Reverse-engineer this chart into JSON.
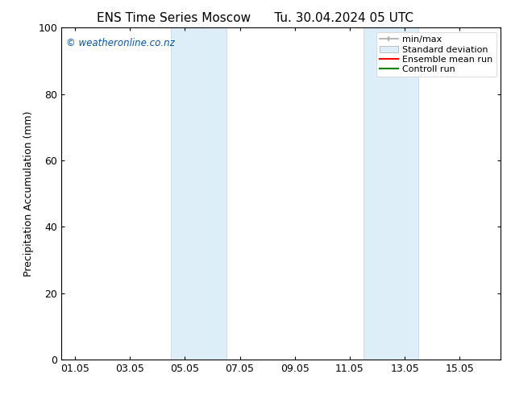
{
  "title_left": "ENS Time Series Moscow",
  "title_right": "Tu. 30.04.2024 05 UTC",
  "ylabel": "Precipitation Accumulation (mm)",
  "ylim": [
    0,
    100
  ],
  "yticks": [
    0,
    20,
    40,
    60,
    80,
    100
  ],
  "background_color": "#ffffff",
  "plot_bg_color": "#ffffff",
  "watermark_text": "© weatheronline.co.nz",
  "watermark_color": "#0055aa",
  "x_tick_labels": [
    "01.05",
    "03.05",
    "05.05",
    "07.05",
    "09.05",
    "11.05",
    "13.05",
    "15.05"
  ],
  "x_tick_positions": [
    0,
    2,
    4,
    6,
    8,
    10,
    12,
    14
  ],
  "x_min": -0.5,
  "x_max": 15.5,
  "shaded_regions": [
    {
      "x_start": 3.5,
      "x_end": 5.5,
      "color": "#ddeef8",
      "edge_color": "#b8d4e8"
    },
    {
      "x_start": 10.5,
      "x_end": 12.5,
      "color": "#ddeef8",
      "edge_color": "#b8d4e8"
    }
  ],
  "legend_items": [
    {
      "label": "min/max",
      "color": "#aaaaaa",
      "style": "line_with_caps"
    },
    {
      "label": "Standard deviation",
      "color": "#ddeef8",
      "style": "filled_box"
    },
    {
      "label": "Ensemble mean run",
      "color": "#ff0000",
      "style": "line"
    },
    {
      "label": "Controll run",
      "color": "#008000",
      "style": "line"
    }
  ],
  "grid_color": "#cccccc",
  "spine_color": "#000000",
  "title_fontsize": 11,
  "axis_label_fontsize": 9,
  "tick_fontsize": 9,
  "legend_fontsize": 8
}
